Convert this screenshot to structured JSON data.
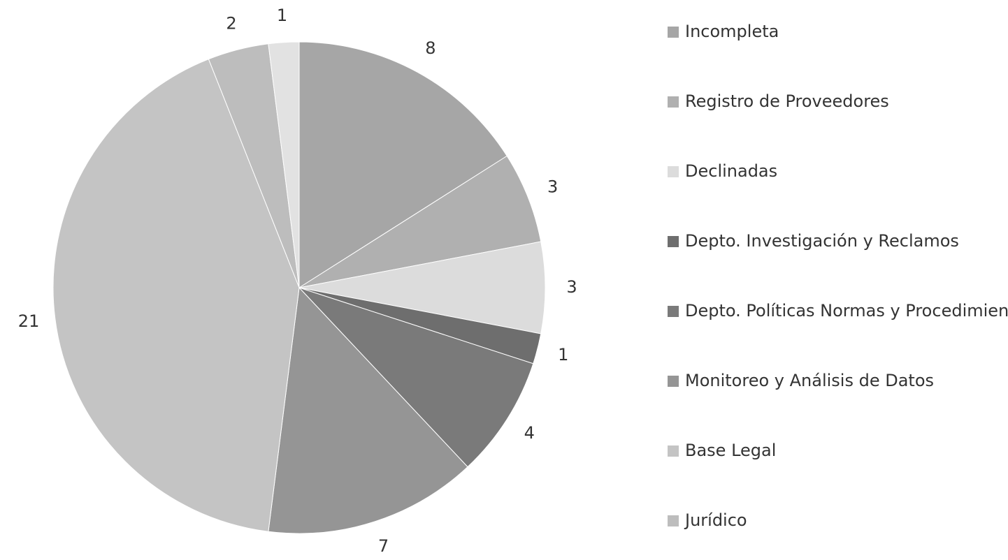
{
  "chart_data": {
    "type": "pie",
    "categories": [
      "Incompleta",
      "Registro de Proveedores",
      "Declinadas",
      "Depto. Investigación y Reclamos",
      "Depto. Políticas Normas y Procedimientos",
      "Monitoreo y Análisis de Datos",
      "Base Legal",
      "Jurídico",
      null
    ],
    "values": [
      8,
      3,
      3,
      1,
      4,
      7,
      21,
      2,
      1
    ],
    "colors": [
      "#a6a6a6",
      "#b0b0b0",
      "#dcdcdc",
      "#6e6e6e",
      "#7a7a7a",
      "#959595",
      "#c4c4c4",
      "#bdbdbd",
      "#e2e2e2"
    ]
  }
}
